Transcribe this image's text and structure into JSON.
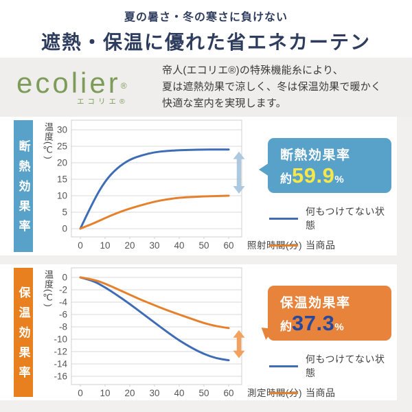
{
  "header": {
    "subtitle": "夏の暑さ・冬の寒さに負けない",
    "title": "遮熱・保温に優れた省エネカーテン"
  },
  "brand": {
    "logo": "ecolier",
    "logo_mark": "®",
    "logo_sub": "エコリエ®",
    "description_line1": "帝人(エコリエ®)の特殊機能糸により、",
    "description_line2": "夏は遮熱効果で涼しく、冬は保温効果で暖かく",
    "description_line3": "快適な室内を実現します。"
  },
  "colors": {
    "header_text": "#2e3c5e",
    "logo_green": "#7d9c5a",
    "insulation_theme": "#58a1c8",
    "retention_theme": "#e8801f",
    "badge_blue": "#58a1c8",
    "badge_orange": "#e8833c",
    "badge_value_yellow": "#f6e84a",
    "badge_value_navy": "#27489b",
    "line_blue": "#3e6db6",
    "line_orange": "#e5812d"
  },
  "charts": [
    {
      "side_label": "断熱効果率",
      "badge": {
        "title": "断熱効果率",
        "prefix": "約",
        "value": "59.9",
        "unit": "%"
      },
      "legend": [
        {
          "label": "何もつけてない状態"
        },
        {
          "label": "当商品"
        }
      ],
      "arrow": {
        "x": 60,
        "from": 24,
        "to": 10,
        "color": "#a9c6de"
      }
    },
    {
      "side_label": "保温効果率",
      "badge": {
        "title": "保温効果率",
        "prefix": "約",
        "value": "37.3",
        "unit": "%"
      },
      "legend": [
        {
          "label": "何もつけてない状態"
        },
        {
          "label": "当商品"
        }
      ],
      "arrow": {
        "x": 60,
        "from": -8.2,
        "to": -13.4,
        "color": "#f09d55"
      }
    }
  ],
  "chart_data": [
    {
      "type": "line",
      "title": "断熱効果率",
      "xlabel": "照射時間(分)",
      "ylabel": "温度(℃)",
      "x": [
        0,
        5,
        10,
        15,
        20,
        25,
        30,
        35,
        40,
        45,
        50,
        55,
        60
      ],
      "x_ticks": [
        0,
        10,
        20,
        30,
        40,
        50,
        60
      ],
      "ylim": [
        0,
        30
      ],
      "y_ticks": [
        0,
        5,
        10,
        15,
        20,
        25,
        30
      ],
      "grid": true,
      "legend_position": "right",
      "series": [
        {
          "name": "何もつけてない状態",
          "color": "#3e6db6",
          "values": [
            0,
            8,
            14.5,
            18.5,
            21,
            22.3,
            23.2,
            23.6,
            23.8,
            23.9,
            24,
            24,
            24
          ]
        },
        {
          "name": "当商品",
          "color": "#e5812d",
          "values": [
            0,
            1.5,
            3.2,
            4.8,
            6.1,
            7.2,
            8.2,
            8.9,
            9.4,
            9.6,
            9.8,
            9.9,
            10
          ]
        }
      ]
    },
    {
      "type": "line",
      "title": "保温効果率",
      "xlabel": "測定時間(分)",
      "ylabel": "温度(℃)",
      "x": [
        0,
        5,
        10,
        15,
        20,
        25,
        30,
        35,
        40,
        45,
        50,
        55,
        60
      ],
      "x_ticks": [
        0,
        10,
        20,
        30,
        40,
        50,
        60
      ],
      "ylim": [
        -16,
        0
      ],
      "y_ticks": [
        0,
        -2,
        -4,
        -6,
        -8,
        -10,
        -12,
        -14,
        -16
      ],
      "grid": true,
      "legend_position": "right",
      "series": [
        {
          "name": "何もつけてない状態",
          "color": "#3e6db6",
          "values": [
            0,
            -0.5,
            -1.6,
            -2.9,
            -4.3,
            -5.8,
            -7.3,
            -8.8,
            -10.2,
            -11.4,
            -12.4,
            -13.1,
            -13.4
          ]
        },
        {
          "name": "当商品",
          "color": "#e5812d",
          "values": [
            0,
            -0.3,
            -1.0,
            -1.9,
            -2.8,
            -3.7,
            -4.5,
            -5.3,
            -6.0,
            -6.7,
            -7.4,
            -7.9,
            -8.2
          ]
        }
      ]
    }
  ]
}
